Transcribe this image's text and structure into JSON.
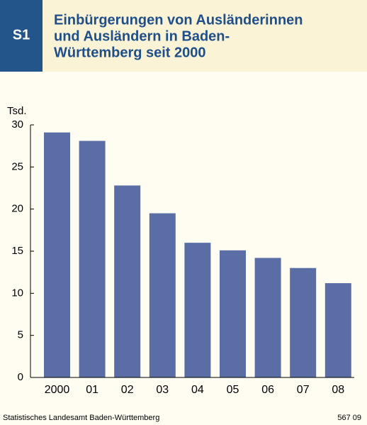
{
  "chart_data": {
    "type": "bar",
    "label": "S1",
    "title": [
      "Einbürgerungen von Ausländerinnen",
      "und Ausländern in Baden-",
      "Württemberg seit 2000"
    ],
    "y_unit": "Tsd.",
    "categories": [
      "2000",
      "01",
      "02",
      "03",
      "04",
      "05",
      "06",
      "07",
      "08"
    ],
    "values": [
      29.1,
      28.1,
      22.8,
      19.5,
      16.0,
      15.1,
      14.2,
      13.0,
      11.2
    ],
    "color": "#5a6ea5",
    "ylim": [
      0,
      30
    ],
    "yticks": [
      0,
      5,
      10,
      15,
      20,
      25,
      30
    ],
    "grid": false,
    "source": "Statistisches Landesamt Baden-Württemberg",
    "code": "567 09"
  }
}
